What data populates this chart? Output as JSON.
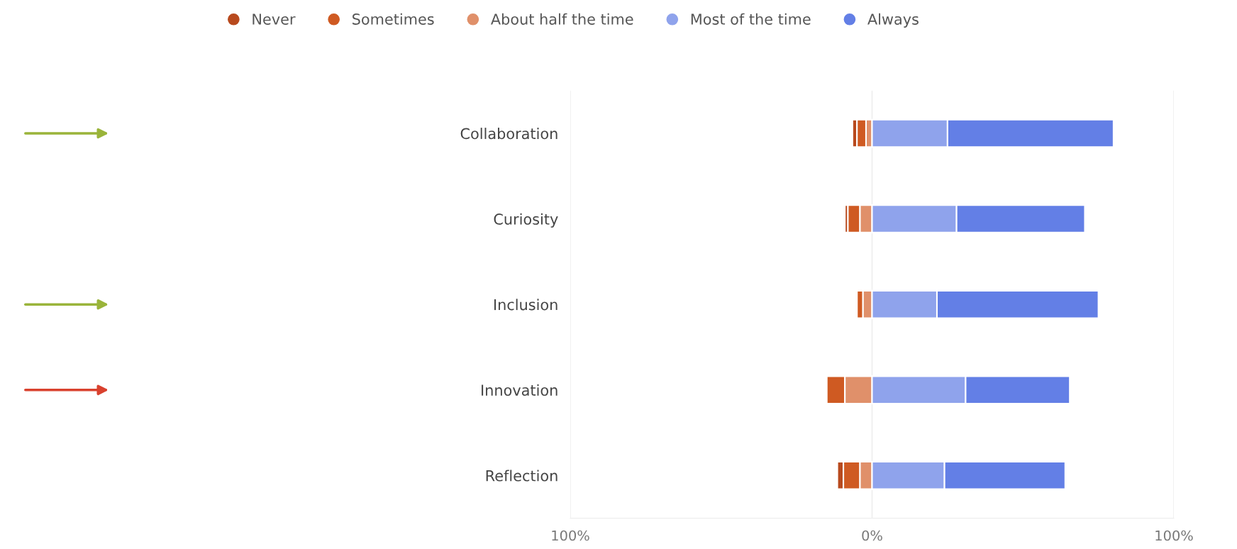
{
  "chart_data": {
    "type": "bar",
    "orientation": "horizontal",
    "categories": [
      "Collaboration",
      "Curiosity",
      "Inclusion",
      "Innovation",
      "Reflection"
    ],
    "series": [
      {
        "name": "Never",
        "color": "#b84a1e",
        "values": [
          -1.5,
          -1,
          null,
          null,
          -2
        ],
        "base": [
          -5,
          -8,
          null,
          null,
          -9.5
        ]
      },
      {
        "name": "Sometimes",
        "color": "#cf5a22",
        "values": [
          -3,
          -4,
          -2,
          -6,
          -5.5
        ],
        "base": [
          -2,
          -4,
          -3,
          -9,
          -4
        ]
      },
      {
        "name": "About half the time",
        "color": "#e0906a",
        "values": [
          -2,
          -4,
          -3,
          -9,
          -4
        ],
        "base": [
          0,
          0,
          0,
          0,
          0
        ]
      },
      {
        "name": "Most of the time",
        "color": "#8fa3ec",
        "values": [
          25,
          28,
          21.5,
          31,
          24
        ],
        "base": [
          0,
          0,
          0,
          0,
          0
        ]
      },
      {
        "name": "Always",
        "color": "#637fe6",
        "values": [
          55,
          42.5,
          53.5,
          34.5,
          40
        ],
        "base": [
          25,
          28,
          21.5,
          31,
          24
        ]
      }
    ],
    "xlim": [
      -100,
      100
    ],
    "xticks": [
      {
        "value": -100,
        "label": "100%"
      },
      {
        "value": 0,
        "label": "0%"
      },
      {
        "value": 100,
        "label": "100%"
      }
    ],
    "grid": "x",
    "legend": "top",
    "marker": "circle"
  }
}
